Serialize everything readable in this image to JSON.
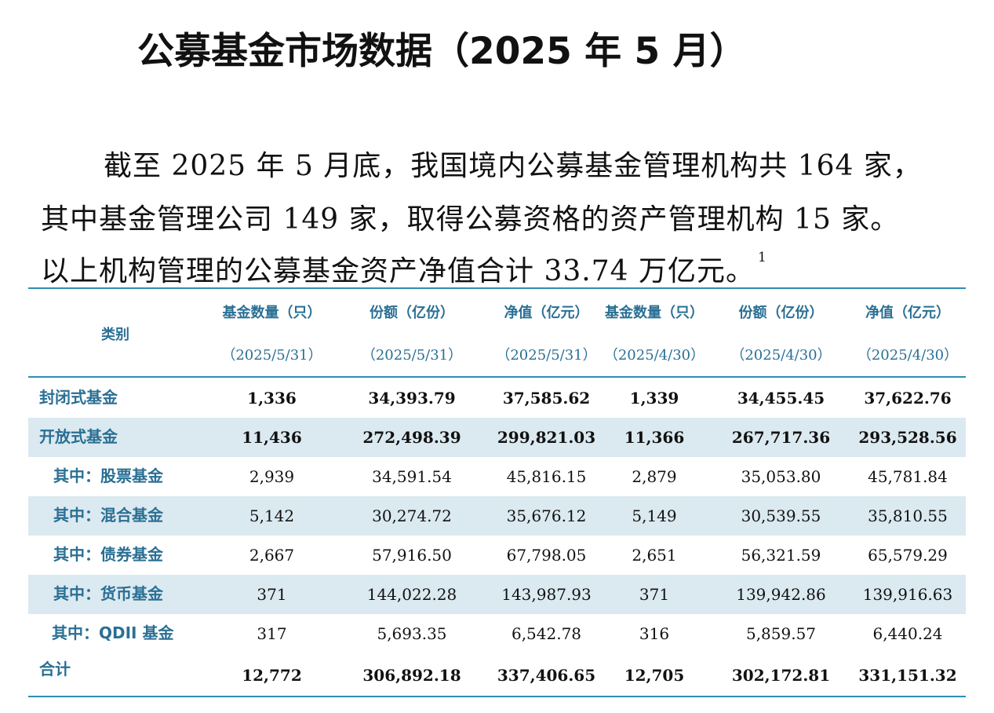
{
  "title": "公募基金市场数据（2025 年 5 月）",
  "paragraph": {
    "line1": "截至 2025 年 5 月底，我国境内公募基金管理机构共 164 家，",
    "line2": "其中基金管理公司 149 家，取得公募资格的资产管理机构 15 家。",
    "line3": "以上机构管理的公募基金资产净值合计 33.74 万亿元。",
    "footnote": "1"
  },
  "table": {
    "category_header": "类别",
    "columns": [
      {
        "label": "基金数量（只）",
        "date": "（2025/5/31）"
      },
      {
        "label": "份额（亿份）",
        "date": "（2025/5/31）"
      },
      {
        "label": "净值（亿元）",
        "date": "（2025/5/31）"
      },
      {
        "label": "基金数量（只）",
        "date": "（2025/4/30）"
      },
      {
        "label": "份额（亿份）",
        "date": "（2025/4/30）"
      },
      {
        "label": "净值（亿元）",
        "date": "（2025/4/30）"
      }
    ],
    "rows": [
      {
        "name": "封闭式基金",
        "values": [
          "1,336",
          "34,393.79",
          "37,585.62",
          "1,339",
          "34,455.45",
          "37,622.76"
        ]
      },
      {
        "name": "开放式基金",
        "values": [
          "11,436",
          "272,498.39",
          "299,821.03",
          "11,366",
          "267,717.36",
          "293,528.56"
        ]
      },
      {
        "name": "其中：股票基金",
        "values": [
          "2,939",
          "34,591.54",
          "45,816.15",
          "2,879",
          "35,053.80",
          "45,781.84"
        ]
      },
      {
        "name": "其中：混合基金",
        "values": [
          "5,142",
          "30,274.72",
          "35,676.12",
          "5,149",
          "30,539.55",
          "35,810.55"
        ]
      },
      {
        "name": "其中：债券基金",
        "values": [
          "2,667",
          "57,916.50",
          "67,798.05",
          "2,651",
          "56,321.59",
          "65,579.29"
        ]
      },
      {
        "name": "其中：货币基金",
        "values": [
          "371",
          "144,022.28",
          "143,987.93",
          "371",
          "139,942.86",
          "139,916.63"
        ]
      },
      {
        "name": "其中：QDII 基金",
        "values": [
          "317",
          "5,693.35",
          "6,542.78",
          "316",
          "5,859.57",
          "6,440.24"
        ]
      },
      {
        "name": "合计",
        "values": [
          "12,772",
          "306,892.18",
          "337,406.65",
          "12,705",
          "302,172.81",
          "331,151.32"
        ]
      }
    ]
  },
  "colors": {
    "accent": "#2f8db4",
    "header_text": "#2a6f94",
    "row_shade": "#dbe9f0"
  }
}
